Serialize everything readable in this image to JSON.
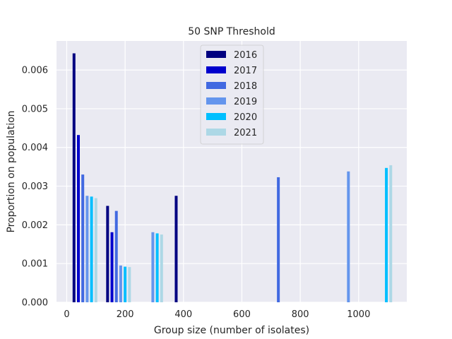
{
  "chart_data": {
    "type": "bar",
    "title": "50 SNP Threshold",
    "xlabel": "Group size (number of isolates)",
    "ylabel": "Proportion on population",
    "xlim": [
      -35,
      1165
    ],
    "ylim": [
      0,
      0.00675
    ],
    "x_ticks": [
      0,
      200,
      400,
      600,
      800,
      1000
    ],
    "y_ticks": [
      0.0,
      0.001,
      0.002,
      0.003,
      0.004,
      0.005,
      0.006
    ],
    "y_tick_labels": [
      "0.000",
      "0.001",
      "0.002",
      "0.003",
      "0.004",
      "0.005",
      "0.006"
    ],
    "grid": true,
    "legend_position": "top-center",
    "series": [
      {
        "name": "2016",
        "color": "#000080",
        "points": [
          [
            25,
            0.00643
          ],
          [
            140,
            0.00249
          ],
          [
            375,
            0.00275
          ]
        ]
      },
      {
        "name": "2017",
        "color": "#0000CD",
        "points": [
          [
            40,
            0.00432
          ],
          [
            155,
            0.00181
          ]
        ]
      },
      {
        "name": "2018",
        "color": "#4169E1",
        "points": [
          [
            55,
            0.0033
          ],
          [
            170,
            0.00236
          ],
          [
            725,
            0.00323
          ]
        ]
      },
      {
        "name": "2019",
        "color": "#6495ED",
        "points": [
          [
            70,
            0.00275
          ],
          [
            185,
            0.00095
          ],
          [
            295,
            0.00181
          ],
          [
            965,
            0.00338
          ]
        ]
      },
      {
        "name": "2020",
        "color": "#00BFFF",
        "points": [
          [
            85,
            0.00273
          ],
          [
            200,
            0.00092
          ],
          [
            310,
            0.00178
          ],
          [
            1095,
            0.00347
          ]
        ]
      },
      {
        "name": "2021",
        "color": "#ADD8E6",
        "points": [
          [
            100,
            0.00269
          ],
          [
            215,
            0.00091
          ],
          [
            325,
            0.00175
          ],
          [
            1110,
            0.00354
          ]
        ]
      }
    ]
  }
}
